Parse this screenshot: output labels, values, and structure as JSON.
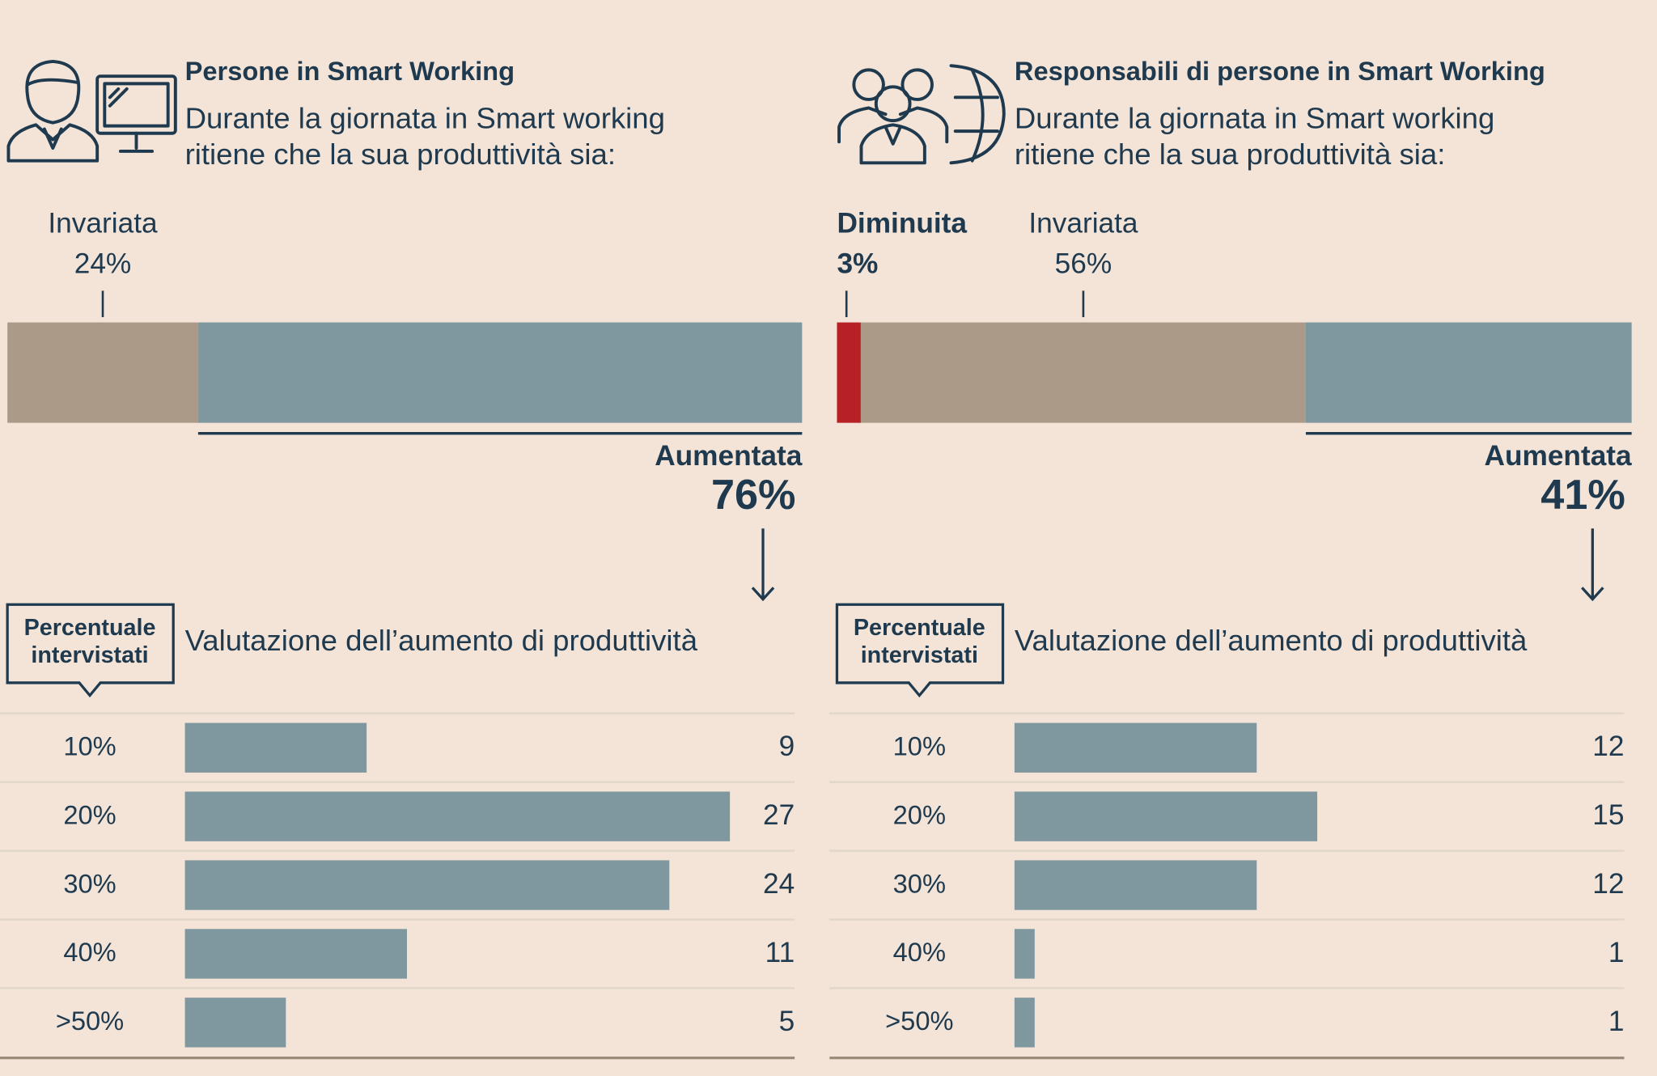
{
  "chart_data": [
    {
      "type": "stacked-bar",
      "title": "Persone in Smart Working",
      "subtitle": [
        "Durante la giornata in Smart working",
        "ritiene che la sua produttività sia:"
      ],
      "xlim": [
        0,
        100
      ],
      "series": [
        {
          "name": "Invariata",
          "color": "#ac9a89",
          "values": [
            24
          ],
          "value_labels": [
            "24%"
          ]
        },
        {
          "name": "Aumentata",
          "color": "#7f979e",
          "values": [
            76
          ],
          "value_labels": [
            "76%"
          ]
        }
      ]
    },
    {
      "type": "bar",
      "title": "Valutazione dell’aumento di produttività",
      "y_label": [
        "Percentuale",
        "intervistati"
      ],
      "categories": [
        "10%",
        "20%",
        "30%",
        "40%",
        ">50%"
      ],
      "values": [
        9,
        27,
        24,
        11,
        5
      ],
      "color": "#7f979e",
      "xlim": [
        0,
        30
      ]
    },
    {
      "type": "stacked-bar",
      "title": "Responsabili di persone in Smart Working",
      "subtitle": [
        "Durante la giornata in Smart working",
        "ritiene che la sua produttività sia:"
      ],
      "xlim": [
        0,
        100
      ],
      "series": [
        {
          "name": "Diminuita",
          "color": "#b72025",
          "values": [
            3
          ],
          "value_labels": [
            "3%"
          ]
        },
        {
          "name": "Invariata",
          "color": "#ac9a89",
          "values": [
            56
          ],
          "value_labels": [
            "56%"
          ]
        },
        {
          "name": "Aumentata",
          "color": "#7f979e",
          "values": [
            41
          ],
          "value_labels": [
            "41%"
          ]
        }
      ]
    },
    {
      "type": "bar",
      "title": "Valutazione dell’aumento di produttività",
      "y_label": [
        "Percentuale",
        "intervistati"
      ],
      "categories": [
        "10%",
        "20%",
        "30%",
        "40%",
        ">50%"
      ],
      "values": [
        12,
        15,
        12,
        1,
        1
      ],
      "color": "#7f979e",
      "xlim": [
        0,
        30
      ]
    }
  ]
}
